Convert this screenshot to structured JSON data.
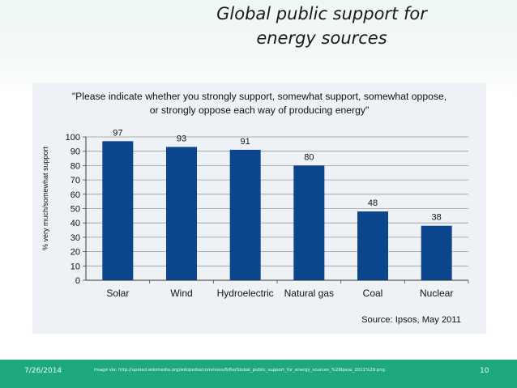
{
  "slide": {
    "title_line1": "Global public support for",
    "title_line2": "energy sources",
    "date": "7/26/2014",
    "image_credit": "Image via: http://upload.wikimedia.org/wikipedia/commons/6/6e/Global_public_support_for_energy_sources_%28Ipsos_2011%29.png",
    "page_number": "10"
  },
  "colors": {
    "bar": "#0b468c",
    "footer": "#1fa77f",
    "chart_background": "#eef1f5"
  },
  "chart_data": {
    "type": "bar",
    "title_line1": "\"Please indicate whether you strongly support, somewhat support, somewhat oppose,",
    "title_line2": "or strongly oppose each way of producing energy\"",
    "ylabel": "% very much/somewhat support",
    "xlabel": "",
    "source": "Source: Ipsos, May 2011",
    "categories": [
      "Solar",
      "Wind",
      "Hydroelectric",
      "Natural gas",
      "Coal",
      "Nuclear"
    ],
    "values": [
      97,
      93,
      91,
      80,
      48,
      38
    ],
    "ylim": [
      0,
      100
    ],
    "yticks": [
      0,
      10,
      20,
      30,
      40,
      50,
      60,
      70,
      80,
      90,
      100
    ],
    "grid": true,
    "legend": "none"
  }
}
